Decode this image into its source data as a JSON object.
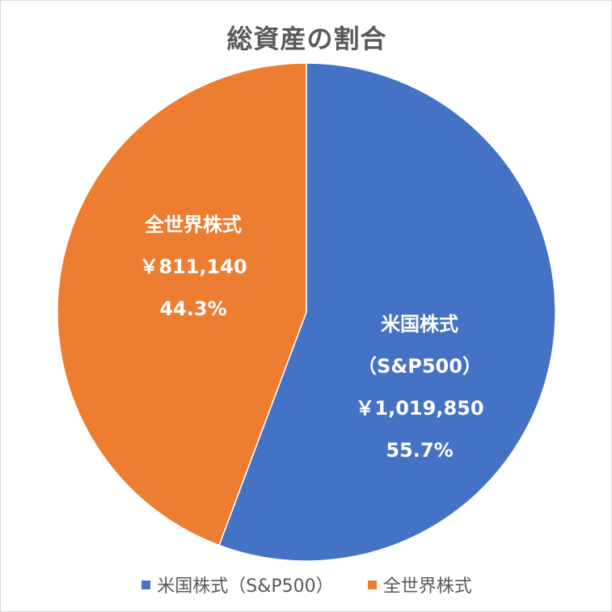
{
  "chart_data": {
    "type": "pie",
    "title": "総資産の割合",
    "series": [
      {
        "name": "米国株式（S&P500）",
        "label_lines": [
          "米国株式",
          "（S&P500）"
        ],
        "value_label": "￥1,019,850",
        "value": 1019850,
        "percent": 55.7,
        "percent_label": "55.7%",
        "color": "#4472C4"
      },
      {
        "name": "全世界株式",
        "label_lines": [
          "全世界株式"
        ],
        "value_label": "￥811,140",
        "value": 811140,
        "percent": 44.3,
        "percent_label": "44.3%",
        "color": "#ED7D31"
      }
    ],
    "start_angle": "12 o'clock",
    "direction": "clockwise",
    "legend_position": "bottom"
  }
}
